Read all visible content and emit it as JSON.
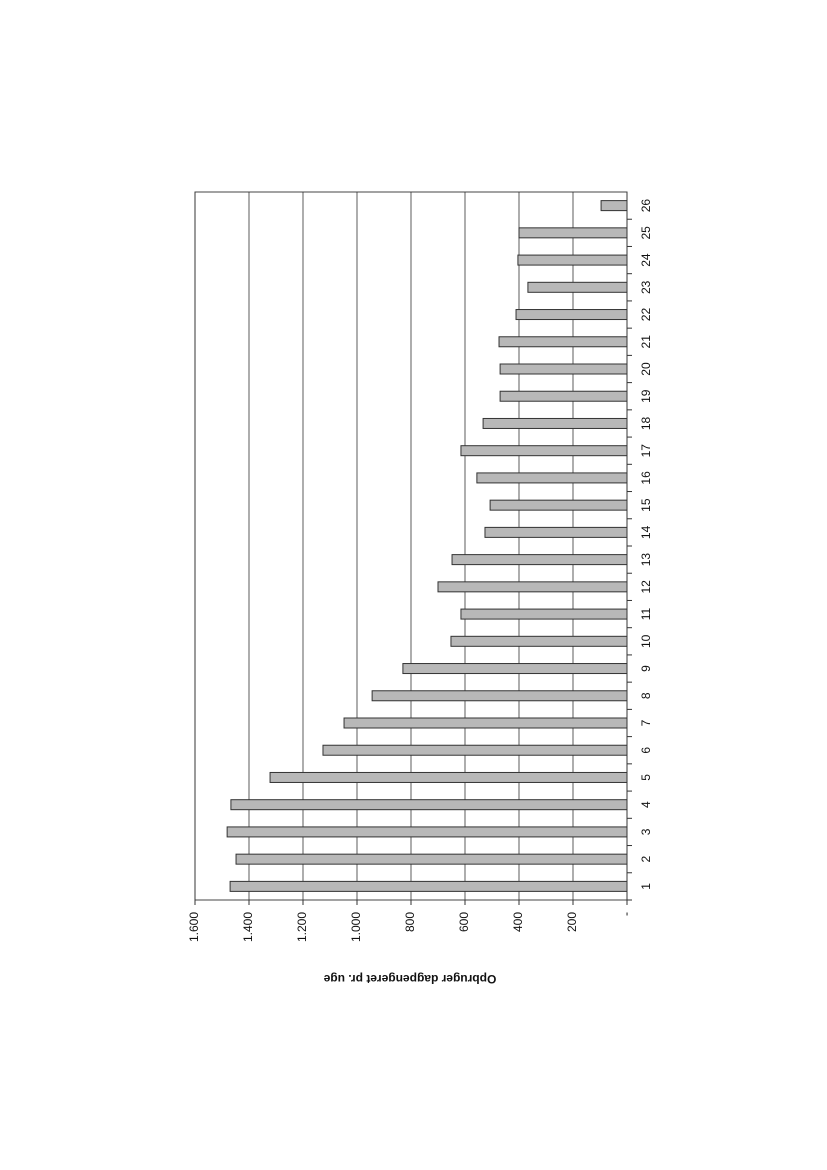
{
  "chart_data": {
    "type": "bar",
    "orientation": "horizontal",
    "axis_label": "Opbruger dagpengeret pr. uge",
    "categories": [
      "1",
      "2",
      "3",
      "4",
      "5",
      "6",
      "7",
      "8",
      "9",
      "10",
      "11",
      "12",
      "13",
      "14",
      "15",
      "16",
      "17",
      "18",
      "19",
      "20",
      "21",
      "22",
      "23",
      "24",
      "25",
      "26"
    ],
    "values": [
      1470,
      1448,
      1481,
      1467,
      1322,
      1126,
      1048,
      944,
      830,
      652,
      615,
      700,
      648,
      526,
      507,
      556,
      615,
      533,
      470,
      470,
      474,
      411,
      367,
      404,
      400,
      96
    ],
    "color": "#b8b8b8",
    "ylim": [
      0,
      1600
    ],
    "yticks": [
      {
        "value": 0,
        "label": "-"
      },
      200,
      400,
      600,
      800,
      {
        "value": 1000,
        "label": "1.000"
      },
      {
        "value": 1200,
        "label": "1.200"
      },
      {
        "value": 1400,
        "label": "1.400"
      },
      {
        "value": 1600,
        "label": "1.600"
      }
    ],
    "grid": true
  }
}
